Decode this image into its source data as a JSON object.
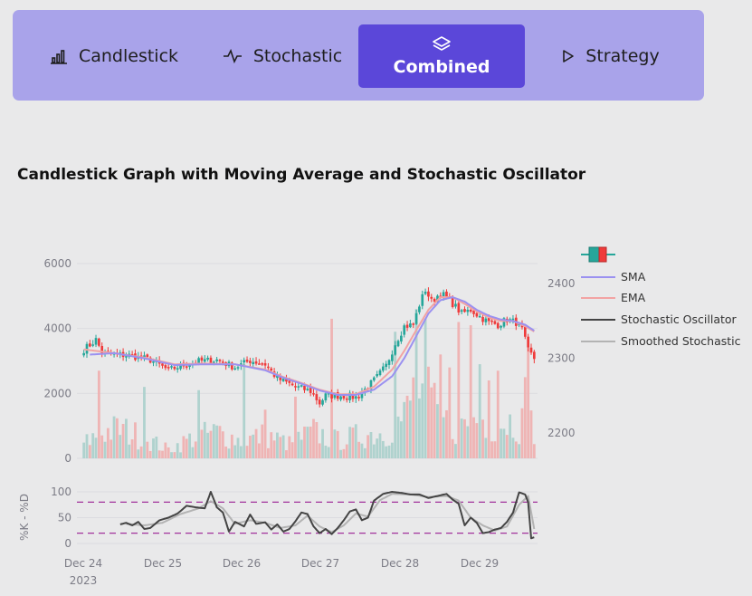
{
  "tabs": [
    {
      "label": "Candlestick",
      "icon": "bar-chart-icon",
      "active": false
    },
    {
      "label": "Stochastic",
      "icon": "pulse-icon",
      "active": false
    },
    {
      "label": "Combined",
      "icon": "layers-icon",
      "active": true
    },
    {
      "label": "Strategy",
      "icon": "play-icon",
      "active": false
    }
  ],
  "colors": {
    "tab_bar": "#a9a3ea",
    "tab_active": "#5b47d9",
    "increasing": "#26a69a",
    "decreasing": "#ef3b3b",
    "sma": "#9b91f0",
    "ema": "#f2a3a3",
    "stoch_k": "#444444",
    "stoch_d": "#b3b3b3",
    "band": "#a2329c"
  },
  "chart_data": {
    "type": "candlestick",
    "title": "Candlestick Graph with Moving Average and Stochastic Oscillator",
    "x_ticks": [
      "Dec 24",
      "Dec 25",
      "Dec 26",
      "Dec 27",
      "Dec 28",
      "Dec 29"
    ],
    "x_year": "2023",
    "y_left_ticks": [
      "0",
      "2000",
      "4000",
      "6000"
    ],
    "y_left_range": [
      0,
      6000
    ],
    "y_right_ticks": [
      "2200",
      "2300",
      "2400"
    ],
    "y_right_range": [
      2166,
      2427
    ],
    "stoch_ylabel": "%K - %D",
    "stoch_ticks": [
      "0",
      "50",
      "100"
    ],
    "stoch_range": [
      0,
      100
    ],
    "stoch_bands": [
      20,
      80
    ],
    "legend": [
      "SMA",
      "EMA",
      "Stochastic Oscillator",
      "Smoothed Stochastic"
    ],
    "price_anchors": [
      [
        0,
        2312
      ],
      [
        2,
        2318
      ],
      [
        4,
        2325
      ],
      [
        6,
        2308
      ],
      [
        10,
        2305
      ],
      [
        15,
        2304
      ],
      [
        22,
        2298
      ],
      [
        28,
        2284
      ],
      [
        32,
        2290
      ],
      [
        38,
        2296
      ],
      [
        44,
        2298
      ],
      [
        50,
        2288
      ],
      [
        55,
        2297
      ],
      [
        60,
        2292
      ],
      [
        64,
        2273
      ],
      [
        70,
        2262
      ],
      [
        75,
        2256
      ],
      [
        78,
        2240
      ],
      [
        80,
        2250
      ],
      [
        85,
        2250
      ],
      [
        90,
        2248
      ],
      [
        94,
        2262
      ],
      [
        97,
        2275
      ],
      [
        100,
        2290
      ],
      [
        103,
        2320
      ],
      [
        106,
        2343
      ],
      [
        109,
        2345
      ],
      [
        111,
        2372
      ],
      [
        113,
        2392
      ],
      [
        115,
        2376
      ],
      [
        118,
        2388
      ],
      [
        121,
        2378
      ],
      [
        125,
        2360
      ],
      [
        128,
        2365
      ],
      [
        131,
        2356
      ],
      [
        134,
        2348
      ],
      [
        137,
        2345
      ],
      [
        140,
        2352
      ],
      [
        143,
        2348
      ],
      [
        145,
        2338
      ],
      [
        147,
        2310
      ],
      [
        149,
        2300
      ]
    ],
    "sma_anchors": [
      [
        2,
        2305
      ],
      [
        10,
        2307
      ],
      [
        20,
        2300
      ],
      [
        30,
        2291
      ],
      [
        40,
        2292
      ],
      [
        50,
        2292
      ],
      [
        60,
        2284
      ],
      [
        66,
        2274
      ],
      [
        72,
        2266
      ],
      [
        78,
        2257
      ],
      [
        84,
        2251
      ],
      [
        90,
        2251
      ],
      [
        96,
        2258
      ],
      [
        102,
        2276
      ],
      [
        106,
        2300
      ],
      [
        110,
        2330
      ],
      [
        114,
        2360
      ],
      [
        118,
        2378
      ],
      [
        122,
        2382
      ],
      [
        126,
        2376
      ],
      [
        130,
        2365
      ],
      [
        134,
        2357
      ],
      [
        138,
        2352
      ],
      [
        142,
        2350
      ],
      [
        146,
        2345
      ],
      [
        149,
        2337
      ]
    ],
    "ema_anchors": [
      [
        0,
        2312
      ],
      [
        10,
        2307
      ],
      [
        20,
        2301
      ],
      [
        30,
        2292
      ],
      [
        40,
        2293
      ],
      [
        50,
        2292
      ],
      [
        60,
        2285
      ],
      [
        66,
        2275
      ],
      [
        72,
        2267
      ],
      [
        78,
        2258
      ],
      [
        84,
        2252
      ],
      [
        90,
        2252
      ],
      [
        96,
        2262
      ],
      [
        102,
        2285
      ],
      [
        106,
        2310
      ],
      [
        110,
        2338
      ],
      [
        114,
        2365
      ],
      [
        118,
        2382
      ],
      [
        122,
        2382
      ],
      [
        126,
        2373
      ],
      [
        130,
        2363
      ],
      [
        134,
        2355
      ],
      [
        138,
        2350
      ],
      [
        142,
        2350
      ],
      [
        146,
        2343
      ],
      [
        149,
        2336
      ]
    ],
    "volume_anchors": [
      [
        0,
        500
      ],
      [
        6,
        900
      ],
      [
        12,
        1000
      ],
      [
        20,
        700
      ],
      [
        28,
        300
      ],
      [
        36,
        700
      ],
      [
        44,
        900
      ],
      [
        52,
        600
      ],
      [
        60,
        800
      ],
      [
        68,
        500
      ],
      [
        76,
        900
      ],
      [
        84,
        600
      ],
      [
        92,
        800
      ],
      [
        100,
        900
      ],
      [
        106,
        1400
      ],
      [
        110,
        2500
      ],
      [
        114,
        2000
      ],
      [
        118,
        1300
      ],
      [
        124,
        1000
      ],
      [
        130,
        1400
      ],
      [
        136,
        1200
      ],
      [
        142,
        1300
      ],
      [
        149,
        1100
      ]
    ],
    "volume_spikes": [
      [
        5,
        2700
      ],
      [
        20,
        2200
      ],
      [
        38,
        2100
      ],
      [
        53,
        2900
      ],
      [
        60,
        1500
      ],
      [
        70,
        1900
      ],
      [
        82,
        4300
      ],
      [
        103,
        3900
      ],
      [
        110,
        4600
      ],
      [
        113,
        4300
      ],
      [
        118,
        3200
      ],
      [
        121,
        2800
      ],
      [
        124,
        4200
      ],
      [
        128,
        4100
      ],
      [
        131,
        2900
      ],
      [
        134,
        2400
      ],
      [
        137,
        2700
      ],
      [
        146,
        2500
      ],
      [
        147,
        3400
      ]
    ],
    "stoch_start": 12,
    "stoch_k_anchors": [
      [
        12,
        37
      ],
      [
        14,
        40
      ],
      [
        16,
        35
      ],
      [
        18,
        42
      ],
      [
        20,
        28
      ],
      [
        22,
        30
      ],
      [
        25,
        45
      ],
      [
        28,
        50
      ],
      [
        31,
        58
      ],
      [
        34,
        73
      ],
      [
        37,
        70
      ],
      [
        40,
        68
      ],
      [
        42,
        100
      ],
      [
        44,
        70
      ],
      [
        46,
        60
      ],
      [
        48,
        23
      ],
      [
        50,
        42
      ],
      [
        53,
        33
      ],
      [
        55,
        56
      ],
      [
        57,
        38
      ],
      [
        60,
        41
      ],
      [
        62,
        27
      ],
      [
        64,
        37
      ],
      [
        66,
        23
      ],
      [
        68,
        28
      ],
      [
        70,
        43
      ],
      [
        72,
        60
      ],
      [
        74,
        57
      ],
      [
        76,
        33
      ],
      [
        78,
        20
      ],
      [
        80,
        28
      ],
      [
        82,
        18
      ],
      [
        84,
        30
      ],
      [
        86,
        45
      ],
      [
        88,
        62
      ],
      [
        90,
        66
      ],
      [
        92,
        45
      ],
      [
        94,
        50
      ],
      [
        96,
        83
      ],
      [
        99,
        96
      ],
      [
        102,
        100
      ],
      [
        105,
        98
      ],
      [
        108,
        95
      ],
      [
        111,
        95
      ],
      [
        114,
        88
      ],
      [
        117,
        92
      ],
      [
        120,
        96
      ],
      [
        122,
        85
      ],
      [
        124,
        77
      ],
      [
        126,
        35
      ],
      [
        128,
        50
      ],
      [
        130,
        40
      ],
      [
        132,
        20
      ],
      [
        134,
        22
      ],
      [
        136,
        27
      ],
      [
        138,
        30
      ],
      [
        140,
        42
      ],
      [
        142,
        60
      ],
      [
        144,
        99
      ],
      [
        146,
        95
      ],
      [
        147,
        80
      ],
      [
        148,
        10
      ],
      [
        149,
        12
      ]
    ],
    "stoch_d_anchors": [
      [
        14,
        38
      ],
      [
        20,
        35
      ],
      [
        26,
        40
      ],
      [
        32,
        57
      ],
      [
        38,
        68
      ],
      [
        42,
        82
      ],
      [
        46,
        68
      ],
      [
        50,
        38
      ],
      [
        55,
        45
      ],
      [
        60,
        40
      ],
      [
        65,
        30
      ],
      [
        70,
        35
      ],
      [
        74,
        54
      ],
      [
        78,
        33
      ],
      [
        82,
        22
      ],
      [
        86,
        35
      ],
      [
        90,
        58
      ],
      [
        94,
        52
      ],
      [
        98,
        84
      ],
      [
        102,
        96
      ],
      [
        108,
        95
      ],
      [
        114,
        90
      ],
      [
        120,
        92
      ],
      [
        124,
        83
      ],
      [
        128,
        50
      ],
      [
        132,
        35
      ],
      [
        136,
        25
      ],
      [
        140,
        33
      ],
      [
        144,
        75
      ],
      [
        147,
        92
      ],
      [
        149,
        28
      ]
    ]
  }
}
